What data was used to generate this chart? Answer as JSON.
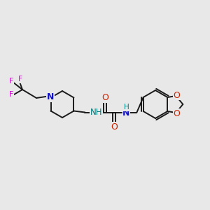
{
  "bg_color": "#e8e8e8",
  "bond_color": "#1a1a1a",
  "N_color": "#1010cc",
  "O_color": "#cc2200",
  "F_color": "#cc00cc",
  "NH_color": "#007777",
  "figsize": [
    3.0,
    3.0
  ],
  "dpi": 100,
  "xlim": [
    0,
    300
  ],
  "ylim": [
    0,
    300
  ]
}
